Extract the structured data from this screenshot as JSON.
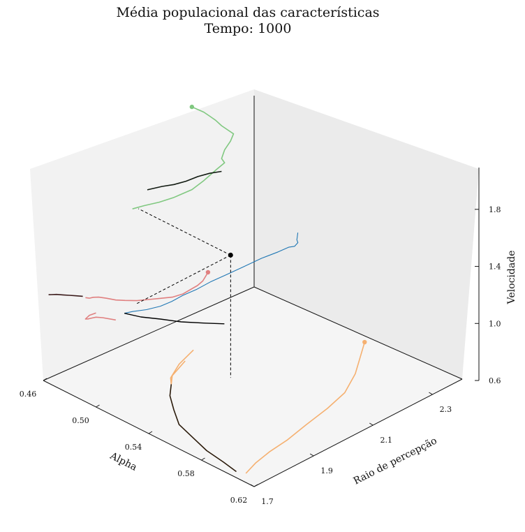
{
  "chart_data": {
    "type": "line",
    "projection": "3d",
    "title": "Média populacional das características",
    "subtitle": "Tempo: 1000",
    "xlabel": "Alpha",
    "ylabel": "Raio de percepção",
    "zlabel": "Velocidade",
    "x_ticks": [
      "0.46",
      "0.50",
      "0.54",
      "0.58",
      "0.62"
    ],
    "y_ticks": [
      "1.7",
      "1.9",
      "2.1",
      "2.3"
    ],
    "z_ticks": [
      "0.6",
      "1.0",
      "1.4",
      "1.8"
    ],
    "xlim": [
      0.46,
      0.62
    ],
    "ylim": [
      1.7,
      2.4
    ],
    "zlim": [
      0.6,
      2.0
    ],
    "grid": false,
    "current_point": {
      "alpha": 0.53,
      "raio": 2.02,
      "velocidade": 1.46
    },
    "pane_traces": [
      {
        "plane": "alpha-velocidade",
        "color": "#e08080",
        "points": [
          [
            0.585,
            1.94
          ],
          [
            0.583,
            1.9
          ],
          [
            0.581,
            1.86
          ],
          [
            0.577,
            1.81
          ],
          [
            0.571,
            1.75
          ],
          [
            0.566,
            1.7
          ],
          [
            0.558,
            1.64
          ],
          [
            0.549,
            1.59
          ],
          [
            0.54,
            1.54
          ],
          [
            0.531,
            1.49
          ],
          [
            0.522,
            1.45
          ],
          [
            0.515,
            1.42
          ],
          [
            0.508,
            1.4
          ],
          [
            0.502,
            1.38
          ],
          [
            0.498,
            1.36
          ],
          [
            0.495,
            1.34
          ],
          [
            0.492,
            1.33
          ]
        ]
      },
      {
        "plane": "alpha-velocidade",
        "color": "#e08080",
        "points": [
          [
            0.515,
            1.28
          ],
          [
            0.505,
            1.25
          ],
          [
            0.5,
            1.23
          ],
          [
            0.497,
            1.21
          ],
          [
            0.494,
            1.19
          ],
          [
            0.492,
            1.18
          ],
          [
            0.495,
            1.22
          ],
          [
            0.5,
            1.26
          ]
        ]
      },
      {
        "plane": "alpha-velocidade",
        "color": "#3a1a1a",
        "points": [
          [
            0.49,
            1.33
          ],
          [
            0.485,
            1.31
          ],
          [
            0.48,
            1.29
          ],
          [
            0.475,
            1.27
          ],
          [
            0.47,
            1.25
          ],
          [
            0.466,
            1.23
          ],
          [
            0.464,
            1.22
          ]
        ]
      },
      {
        "plane": "raio-velocidade",
        "color": "#80c880",
        "points": [
          [
            2.2,
            1.98
          ],
          [
            2.22,
            1.94
          ],
          [
            2.24,
            1.9
          ],
          [
            2.26,
            1.85
          ],
          [
            2.28,
            1.8
          ],
          [
            2.3,
            1.74
          ],
          [
            2.32,
            1.69
          ],
          [
            2.34,
            1.64
          ],
          [
            2.33,
            1.6
          ],
          [
            2.31,
            1.56
          ],
          [
            2.3,
            1.51
          ],
          [
            2.31,
            1.47
          ],
          [
            2.28,
            1.45
          ],
          [
            2.24,
            1.42
          ],
          [
            2.2,
            1.4
          ],
          [
            2.14,
            1.41
          ],
          [
            2.09,
            1.43
          ],
          [
            2.04,
            1.46
          ],
          [
            2.0,
            1.48
          ]
        ]
      },
      {
        "plane": "raio-velocidade",
        "color": "#111a11",
        "points": [
          [
            2.3,
            1.42
          ],
          [
            2.26,
            1.45
          ],
          [
            2.22,
            1.47
          ],
          [
            2.18,
            1.48
          ],
          [
            2.14,
            1.5
          ],
          [
            2.1,
            1.53
          ],
          [
            2.05,
            1.56
          ]
        ]
      },
      {
        "plane": "alpha-raio",
        "color": "#f5b070",
        "points": [
          [
            0.555,
            2.36
          ],
          [
            0.565,
            2.3
          ],
          [
            0.575,
            2.24
          ],
          [
            0.585,
            2.16
          ],
          [
            0.59,
            2.08
          ],
          [
            0.594,
            1.99
          ],
          [
            0.598,
            1.91
          ],
          [
            0.6,
            1.84
          ],
          [
            0.603,
            1.78
          ],
          [
            0.607,
            1.73
          ]
        ]
      },
      {
        "plane": "alpha-raio",
        "color": "#f5b070",
        "points": [
          [
            0.495,
            2.05
          ],
          [
            0.5,
            1.98
          ],
          [
            0.507,
            1.92
          ],
          [
            0.512,
            1.9
          ],
          [
            0.506,
            1.93
          ],
          [
            0.5,
            2.0
          ]
        ]
      },
      {
        "plane": "alpha-raio",
        "color": "#2a1a0a",
        "points": [
          [
            0.512,
            1.9
          ],
          [
            0.52,
            1.86
          ],
          [
            0.532,
            1.82
          ],
          [
            0.545,
            1.78
          ],
          [
            0.56,
            1.76
          ],
          [
            0.575,
            1.74
          ],
          [
            0.59,
            1.73
          ],
          [
            0.602,
            1.72
          ]
        ]
      }
    ],
    "trajectory": {
      "color": "#1f77b4",
      "points": [
        [
          0.59,
          1.98,
          1.94
        ],
        [
          0.585,
          2.0,
          1.86
        ],
        [
          0.578,
          2.03,
          1.78
        ],
        [
          0.572,
          2.06,
          1.7
        ],
        [
          0.565,
          2.08,
          1.62
        ],
        [
          0.556,
          2.1,
          1.55
        ],
        [
          0.548,
          2.1,
          1.48
        ],
        [
          0.54,
          2.08,
          1.42
        ],
        [
          0.533,
          2.05,
          1.36
        ],
        [
          0.527,
          2.02,
          1.31
        ],
        [
          0.522,
          1.99,
          1.27
        ],
        [
          0.518,
          1.96,
          1.23
        ],
        [
          0.514,
          1.93,
          1.2
        ],
        [
          0.51,
          1.91,
          1.16
        ],
        [
          0.506,
          1.89,
          1.13
        ],
        [
          0.5,
          1.87,
          1.1
        ],
        [
          0.494,
          1.85,
          1.08
        ],
        [
          0.49,
          1.84,
          1.06
        ]
      ]
    },
    "trajectory_black": {
      "color": "#000000",
      "points": [
        [
          0.49,
          1.84,
          1.06
        ],
        [
          0.498,
          1.86,
          1.05
        ],
        [
          0.506,
          1.89,
          1.04
        ],
        [
          0.515,
          1.92,
          1.03
        ],
        [
          0.524,
          1.96,
          1.02
        ],
        [
          0.532,
          1.99,
          1.02
        ]
      ]
    }
  }
}
